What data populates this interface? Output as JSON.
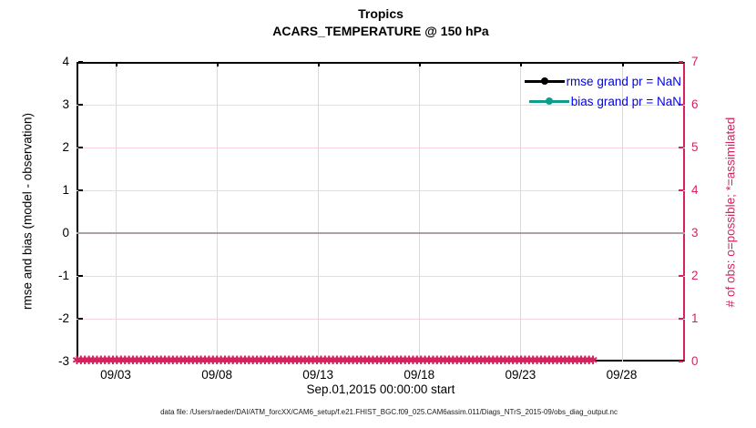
{
  "title": {
    "line1": "Tropics",
    "line2": "ACARS_TEMPERATURE @ 150 hPa"
  },
  "axes": {
    "left": {
      "label": "rmse and bias (model - observation)",
      "ticks": [
        "4",
        "3",
        "2",
        "1",
        "0",
        "-1",
        "-2",
        "-3"
      ]
    },
    "right": {
      "label": "# of obs: o=possible; *=assimilated",
      "ticks": [
        "7",
        "6",
        "5",
        "4",
        "3",
        "2",
        "1",
        "0"
      ],
      "color": "#d8215f"
    },
    "x": {
      "ticks": [
        "09/03",
        "09/08",
        "09/13",
        "09/18",
        "09/23",
        "09/28"
      ],
      "label": "Sep.01,2015 00:00:00 start"
    }
  },
  "legend": [
    {
      "label": "rmse grand pr = NaN",
      "color": "#000000"
    },
    {
      "label": "bias grand pr = NaN",
      "color": "#0e9c8d"
    }
  ],
  "band": {
    "marker": "✱",
    "repeat": 130
  },
  "footer": {
    "text": "data file: /Users/raeder/DAI/ATM_forcXX/CAM6_setup/f.e21.FHIST_BGC.f09_025.CAM6assim.011/Diags_NTrS_2015-09/obs_diag_output.nc"
  },
  "chart_data": {
    "type": "line",
    "title": "Tropics",
    "subtitle": "ACARS_TEMPERATURE @ 150 hPa",
    "xlabel": "Sep.01,2015 00:00:00 start",
    "x_tick_labels": [
      "09/03",
      "09/08",
      "09/13",
      "09/18",
      "09/23",
      "09/28"
    ],
    "x_range": [
      "2015-09-01 00:00:00",
      "2015-10-01 00:00:00"
    ],
    "y_left": {
      "label": "rmse and bias (model - observation)",
      "lim": [
        -3,
        4
      ]
    },
    "y_right": {
      "label": "# of obs: o=possible; *=assimilated",
      "lim": [
        0,
        7
      ]
    },
    "series": [
      {
        "name": "rmse",
        "axis": "left",
        "color": "#000000",
        "marker": "filled-circle",
        "grand_pr": "NaN",
        "values": []
      },
      {
        "name": "bias",
        "axis": "left",
        "color": "#0e9c8d",
        "marker": "filled-circle",
        "grand_pr": "NaN",
        "values": []
      },
      {
        "name": "obs-assimilated",
        "axis": "right",
        "color": "#d8215f",
        "marker": "asterisk",
        "value_constant": 0
      }
    ],
    "zero_line": {
      "axis": "left",
      "y": 0,
      "color": "#aaa2a6"
    },
    "grid": {
      "vertical_at_x_ticks": true,
      "horizontal_at_right_ticks": true,
      "legend_position": "top-right-inside",
      "legend_box": false
    }
  }
}
